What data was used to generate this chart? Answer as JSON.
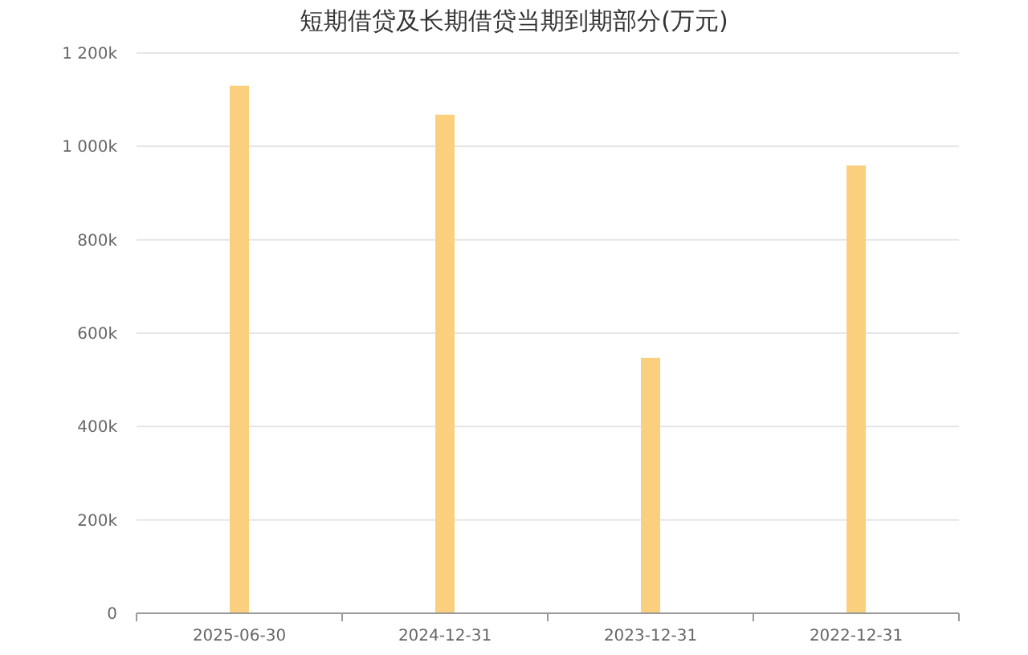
{
  "chart_data": {
    "type": "bar",
    "title": "短期借贷及长期借贷当期到期部分(万元)",
    "categories": [
      "2025-06-30",
      "2024-12-31",
      "2023-12-31",
      "2022-12-31"
    ],
    "values": [
      1130000,
      1068000,
      547000,
      959000
    ],
    "color": "#fad07f",
    "ylim": [
      0,
      1200000
    ],
    "yticks": [
      0,
      {
        "value": 200000,
        "label": "200k"
      },
      {
        "value": 400000,
        "label": "400k"
      },
      {
        "value": 600000,
        "label": "600k"
      },
      {
        "value": 800000,
        "label": "800k"
      },
      {
        "value": 1000000,
        "label": "1 000k"
      },
      {
        "value": 1200000,
        "label": "1 200k"
      }
    ],
    "grid": "y"
  }
}
